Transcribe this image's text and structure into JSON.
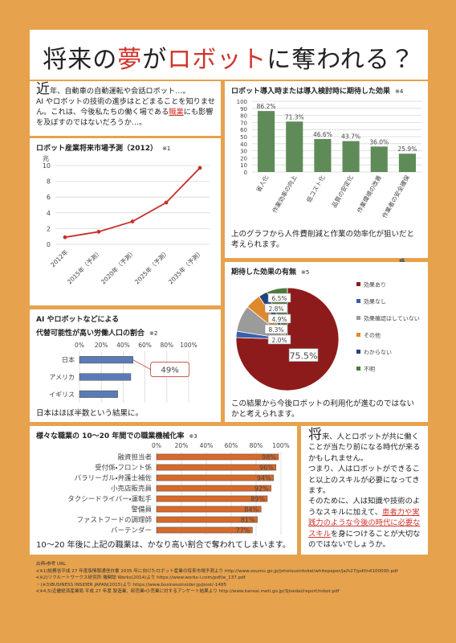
{
  "title_parts": [
    "将来の",
    "夢",
    "が",
    "ロボット",
    "に奪われる？"
  ],
  "intro_parts": [
    "近",
    "年、自動車の自動運転や会話ロボット…。",
    "AI やロボットの技術の進歩はとどまることを知りません。これは、今後私たちの働く場である",
    "職業",
    "にも影響を及ぼすのではないだろうか…。"
  ],
  "conclusion_parts": [
    "将",
    "来、人とロボットが共に働くことが当たり前になる時代が来るかもしれません。",
    "つまり、人はロボットができること以上のスキルが必要になってきます。",
    "そのために、人は知識や技術のようなスキルに加えて、",
    "患者力や実践力のような今後の時代に必要なスキル",
    "を身につけることが大切なのではないでしょうか。"
  ],
  "sources": {
    "heading": "出典・参考 URL",
    "items": [
      "・(※1)総務省平成 27 年度版情報通信白書 2035 年に向けたロボット産業の将来市場予測より http://www.soumu.go.jp/johotsusintokei/whitepaper/ja/h27/pdf/n4100000.pdf",
      "・(※2)リクルートワークス研究所 機関誌 Works(2014)より https://www.works-i.com/pdf/w_137.pdf",
      "・(※3)BUSINESS INSIDER JAPAN(2015)より https://www.businessinsider.jp/post/-1485",
      "・(※4,5)近畿経済産業局 平成 27 年度 製造業、卸売業・小売業に対するアンケート結果より http://www.kansai.meti.go.jp/3jisedai/report/robot.pdf"
    ]
  },
  "chart_data": [
    {
      "type": "line",
      "title": "ロボット産業将来市場予測（2012）",
      "note": "※1",
      "y_unit": "兆",
      "categories": [
        "2012年",
        "2015年（予測）",
        "2020年（予測）",
        "2025年（予測）",
        "2035年（予測）"
      ],
      "values": [
        0.9,
        1.6,
        2.9,
        5.3,
        9.7
      ],
      "color": "#c8312b",
      "ylim": [
        0,
        10
      ],
      "yticks": [
        0,
        2,
        4,
        6,
        8,
        10
      ],
      "grid": true
    },
    {
      "type": "bar",
      "title": "ロボット導入時または導入検討時に期待した効果",
      "note": "※4",
      "categories": [
        "省人化",
        "作業効率の向上",
        "低コスト化",
        "品質の安定化",
        "作業環境の改善",
        "作業者の安全確保"
      ],
      "values": [
        86.2,
        71.3,
        46.6,
        43.7,
        36.0,
        25.9
      ],
      "value_labels": [
        "86.2%",
        "71.3%",
        "46.6%",
        "43.7%",
        "36.0%",
        "25.9%"
      ],
      "color": "#5e8b57",
      "ylim": [
        0,
        100
      ],
      "yticks": [
        0,
        10,
        20,
        30,
        40,
        50,
        60,
        70,
        80,
        90,
        100
      ],
      "grid": true,
      "caption": "上のグラフから人件費削減と作業の効率化が狙いだと考えられます。"
    },
    {
      "type": "pie",
      "title": "期待した効果の有無",
      "note": "※5",
      "categories": [
        "効果あり",
        "効果なし",
        "効果確認はしていない",
        "その他",
        "わからない",
        "不明"
      ],
      "values": [
        75.5,
        2.0,
        8.3,
        4.9,
        2.8,
        6.5
      ],
      "value_labels": [
        "75.5%",
        "2.0%",
        "8.3%",
        "4.9%",
        "2.8%",
        "6.5%"
      ],
      "colors": [
        "#8e1b1b",
        "#3c5ea8",
        "#9b9b9b",
        "#e0892b",
        "#25427c",
        "#4c7b3b"
      ],
      "legend": "right",
      "caption": "この結果から今後ロボットの利用化が進むのではないかと考えられます。"
    },
    {
      "type": "hbar",
      "title": "AI やロボットなどによる",
      "subtitle": "代替可能性が高い労働人口の割合",
      "note": "※2",
      "categories": [
        "日本",
        "アメリカ",
        "イギリス"
      ],
      "values": [
        49,
        47,
        35
      ],
      "color": "#5b7bb5",
      "xlim": [
        0,
        100
      ],
      "xticks": [
        {
          "value": 0,
          "label": "0%"
        },
        {
          "value": 20,
          "label": "20%"
        },
        {
          "value": 40,
          "label": "40%"
        },
        {
          "value": 60,
          "label": "60%"
        },
        {
          "value": 80,
          "label": "80%"
        },
        {
          "value": 100,
          "label": "100%"
        }
      ],
      "grid": true,
      "annotation": "49%",
      "caption": "日本はほぼ半数という結果に。"
    },
    {
      "type": "hbar",
      "title": "様々な職業の 10～20 年間での職業機械化率",
      "note": "※3",
      "categories": [
        "融資担当者",
        "受付係・フロント係",
        "パラリーガル・弁護士補佐",
        "小売店販売員",
        "タクシードライバー・運転手",
        "警備員",
        "ファストフードの調理師",
        "バーテンダー"
      ],
      "values": [
        98,
        96,
        94,
        92,
        89,
        84,
        81,
        77
      ],
      "value_labels": [
        "98%",
        "96%",
        "94%",
        "92%",
        "89%",
        "84%",
        "81%",
        "77%"
      ],
      "color": "#d8692a",
      "xlim": [
        0,
        100
      ],
      "xticks": [
        {
          "value": 0,
          "label": "0%"
        },
        {
          "value": 20,
          "label": "20%"
        },
        {
          "value": 40,
          "label": "40%"
        },
        {
          "value": 60,
          "label": "60%"
        },
        {
          "value": 80,
          "label": "80%"
        },
        {
          "value": 100,
          "label": "100%"
        }
      ],
      "grid": true,
      "caption": "10～20 年後に上記の職業は、かなり高い割合で奪われてしまいます。"
    }
  ]
}
